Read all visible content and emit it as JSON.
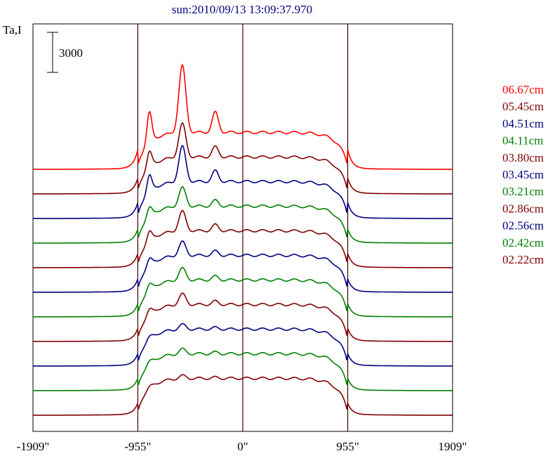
{
  "chart_data": {
    "type": "line",
    "title": "sun:2010/09/13 13:09:37.970",
    "ylabel": "Ta,I",
    "scale_bar_label": "3000",
    "scale_bar_value": 3000,
    "xlim": [
      -1909,
      1909
    ],
    "x_ticks": [
      {
        "value": -1909,
        "label": "-1909\""
      },
      {
        "value": -955,
        "label": "-955\""
      },
      {
        "value": 0,
        "label": "0\""
      },
      {
        "value": 955,
        "label": "955\""
      },
      {
        "value": 1909,
        "label": "1909\""
      }
    ],
    "vertical_lines": [
      -955,
      0,
      955
    ],
    "grid": false,
    "legend_position": "right",
    "series": [
      {
        "name": "06.67cm",
        "color": "#ff0000",
        "peak": 3.4
      },
      {
        "name": "05.45cm",
        "color": "#800000",
        "peak": 1.7
      },
      {
        "name": "04.51cm",
        "color": "#000080",
        "peak": 1.8
      },
      {
        "name": "04.11cm",
        "color": "#008000",
        "peak": 0.95
      },
      {
        "name": "03.80cm",
        "color": "#800000",
        "peak": 1.0
      },
      {
        "name": "03.45cm",
        "color": "#000080",
        "peak": 0.7
      },
      {
        "name": "03.21cm",
        "color": "#008000",
        "peak": 0.6
      },
      {
        "name": "02.86cm",
        "color": "#800000",
        "peak": 0.55
      },
      {
        "name": "02.56cm",
        "color": "#000080",
        "peak": 0.25
      },
      {
        "name": "02.42cm",
        "color": "#008000",
        "peak": 0.25
      },
      {
        "name": "02.22cm",
        "color": "#800000",
        "peak": 0.15
      }
    ]
  }
}
